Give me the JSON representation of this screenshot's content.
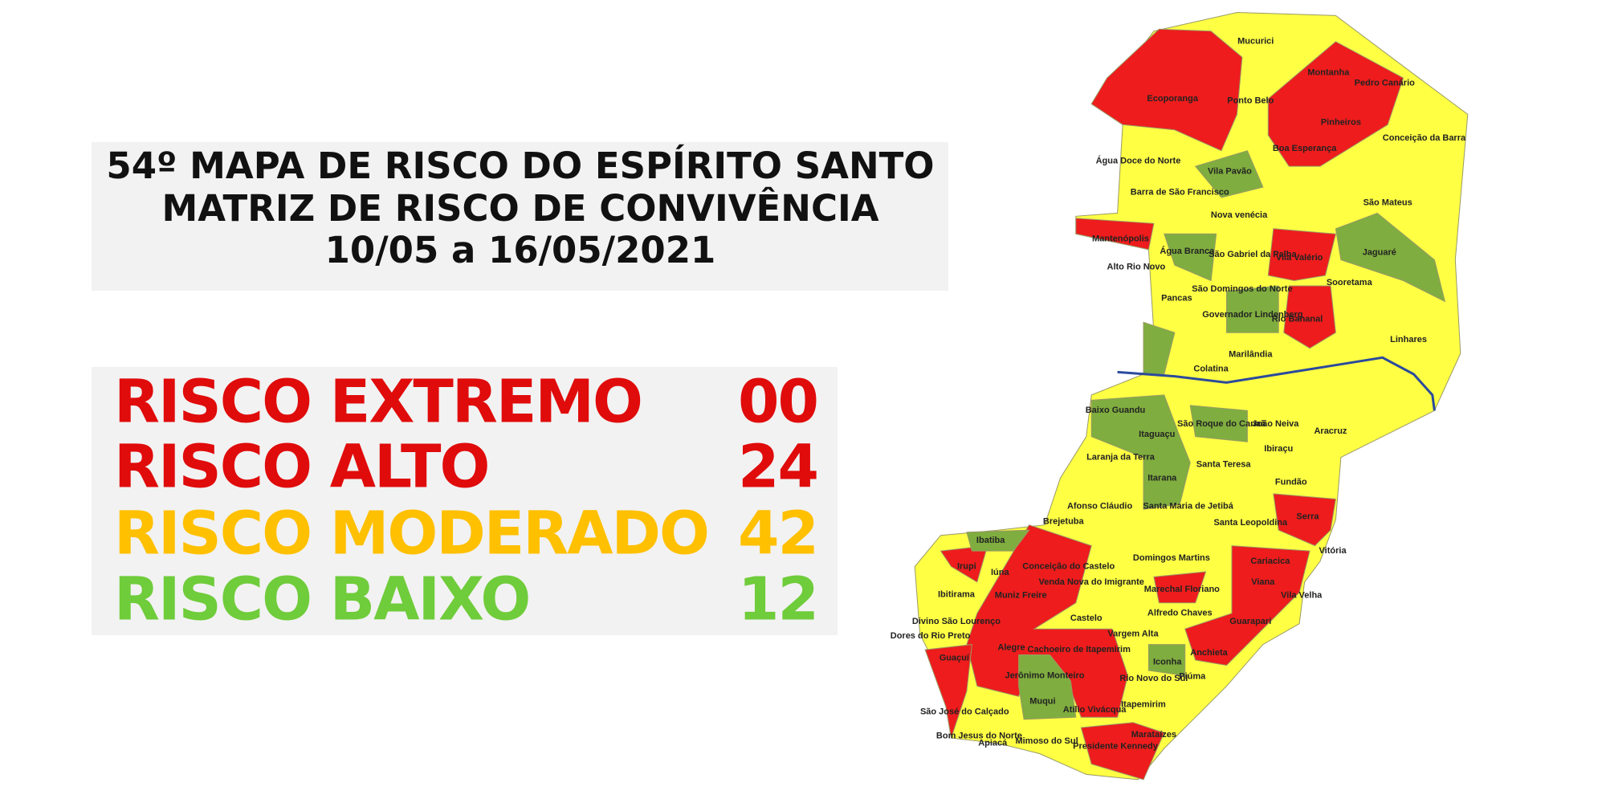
{
  "title": {
    "lines": [
      "54º MAPA DE RISCO DO ESPÍRITO SANTO",
      "MATRIZ DE RISCO DE CONVIVÊNCIA",
      "10/05 a 16/05/2021"
    ]
  },
  "legend": {
    "items": [
      {
        "label": "RISCO EXTREMO",
        "count": "00",
        "color": "#e00b0b"
      },
      {
        "label": "RISCO ALTO",
        "count": "24",
        "color": "#e00b0b"
      },
      {
        "label": "RISCO MODERADO",
        "count": "42",
        "color": "#ffc000"
      },
      {
        "label": "RISCO BAIXO",
        "count": "12",
        "color": "#6fcc3a"
      }
    ]
  },
  "map": {
    "labels": [
      "Mucurici",
      "Montanha",
      "Pedro Canário",
      "Ecoporanga",
      "Ponto Belo",
      "Pinheiros",
      "Conceição da Barra",
      "Boa Esperança",
      "Água Doce do Norte",
      "Vila Pavão",
      "Barra de São Francisco",
      "São Mateus",
      "Nova venécia",
      "Mantenópolis",
      "Água Branca",
      "São Gabriel da Palha",
      "Vila Valério",
      "Jaguaré",
      "Alto Rio Novo",
      "Sooretama",
      "São Domingos do Norte",
      "Pancas",
      "Governador Lindenberg",
      "Rio Bananal",
      "Linhares",
      "Marilândia",
      "Colatina",
      "Baixo Guandu",
      "São Roque do Canaã",
      "João Neiva",
      "Aracruz",
      "Itaguaçu",
      "Ibiraçu",
      "Laranja da Terra",
      "Santa Teresa",
      "Itarana",
      "Fundão",
      "Afonso Cláudio",
      "Santa Maria de Jetibá",
      "Serra",
      "Brejetuba",
      "Santa Leopoldina",
      "Vitória",
      "Ibatiba",
      "Domingos Martins",
      "Cariacica",
      "Conceição do Castelo",
      "Venda Nova do Imigrante",
      "Irupi",
      "Iúna",
      "Viana",
      "Marechal Floriano",
      "Vila Velha",
      "Ibitirama",
      "Muniz Freire",
      "Alfredo Chaves",
      "Castelo",
      "Divino São Lourenço",
      "Guarapari",
      "Dores do Rio Preto",
      "Vargem Alta",
      "Alegre",
      "Cachoeiro de Itapemirim",
      "Anchieta",
      "Guaçuí",
      "Iconha",
      "Jerônimo Monteiro",
      "Rio Novo do Sul",
      "Piúma",
      "São José do Calçado",
      "Muqui",
      "Atílio Vivácqua",
      "Itapemirim",
      "Bom Jesus do Norte",
      "Apiacá",
      "Mimoso do Sul",
      "Marataízes",
      "Presidente Kennedy"
    ]
  }
}
